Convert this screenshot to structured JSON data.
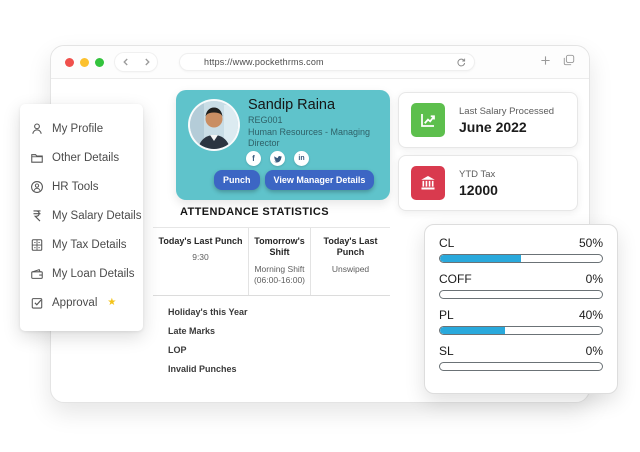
{
  "browser": {
    "url": "https://www.pockethrms.com",
    "window_controls": [
      "close",
      "minimize",
      "zoom"
    ]
  },
  "colors": {
    "profile_card": "#5fc3cb",
    "action_button": "#3c66c4",
    "progress_fill": "#29a9dc",
    "salary_icon_bg": "#5dbf4d",
    "tax_icon_bg": "#d93a4e",
    "traffic_red": "#f0504c",
    "traffic_yellow": "#fcc12e",
    "traffic_green": "#33c33d",
    "star": "#f4c318"
  },
  "sidebar": {
    "items": [
      {
        "label": "My Profile",
        "icon": "user-icon"
      },
      {
        "label": "Other Details",
        "icon": "folder-icon"
      },
      {
        "label": "HR Tools",
        "icon": "support-icon"
      },
      {
        "label": "My Salary Details",
        "icon": "rupee-icon"
      },
      {
        "label": "My Tax Details",
        "icon": "calculator-icon"
      },
      {
        "label": "My Loan Details",
        "icon": "wallet-icon"
      },
      {
        "label": "Approval",
        "icon": "approval-icon",
        "badge": "star-icon"
      }
    ]
  },
  "profile": {
    "name": "Sandip Raina",
    "employee_id": "REG001",
    "designation": "Human Resources - Managing Director",
    "social_icons": [
      "facebook-icon",
      "twitter-icon",
      "linkedin-icon"
    ],
    "linkedin_text": "in",
    "facebook_text": "f",
    "punch_button": "Punch",
    "view_manager_button": "View Manager Details"
  },
  "info_cards": [
    {
      "label": "Last Salary Processed",
      "value": "June 2022",
      "icon": "chart-icon"
    },
    {
      "label": "YTD Tax",
      "value": "12000",
      "icon": "bank-icon"
    }
  ],
  "attendance": {
    "title": "ATTENDANCE STATISTICS",
    "columns": [
      {
        "header": "Today's Last Punch",
        "value": "9:30"
      },
      {
        "header": "Tomorrow's Shift",
        "value": "Morning Shift (06:00-16:00)"
      },
      {
        "header": "Today's Last Punch",
        "value": "Unswiped"
      }
    ],
    "list": [
      "Holiday's this Year",
      "Late Marks",
      "LOP",
      "Invalid Punches"
    ]
  },
  "leave_balance": {
    "items": [
      {
        "code": "CL",
        "percent": 50,
        "percent_label": "50%"
      },
      {
        "code": "COFF",
        "percent": 0,
        "percent_label": "0%"
      },
      {
        "code": "PL",
        "percent": 40,
        "percent_label": "40%"
      },
      {
        "code": "SL",
        "percent": 0,
        "percent_label": "0%"
      }
    ]
  }
}
